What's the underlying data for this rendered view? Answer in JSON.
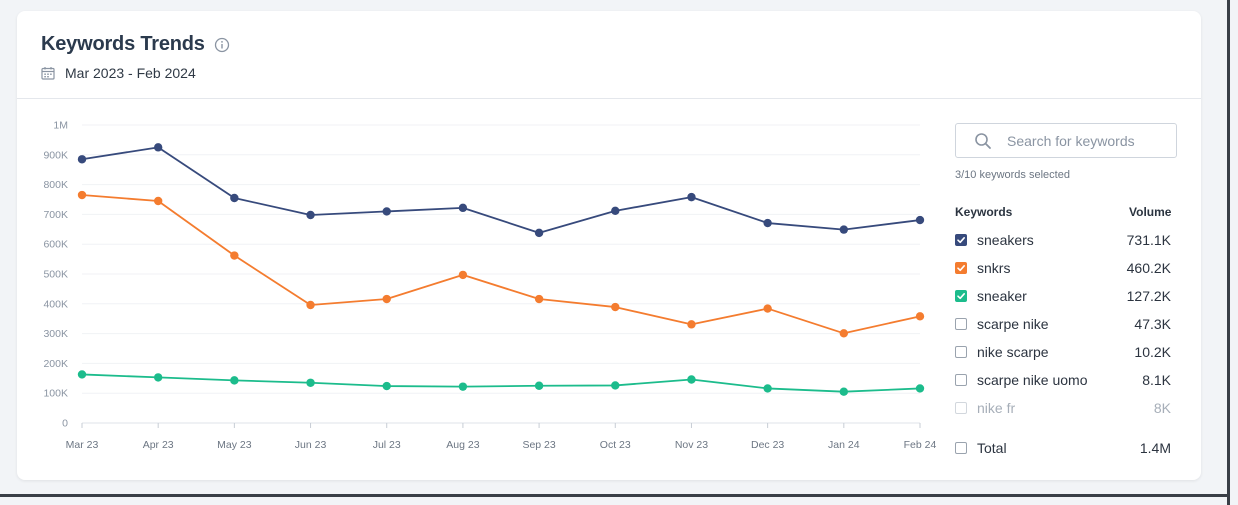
{
  "header": {
    "title": "Keywords Trends",
    "date_range": "Mar 2023 - Feb 2024"
  },
  "search": {
    "placeholder": "Search for keywords",
    "selected_text": "3/10 keywords selected"
  },
  "keyword_table": {
    "col_keywords": "Keywords",
    "col_volume": "Volume",
    "rows": [
      {
        "label": "sneakers",
        "volume": "731.1K",
        "checked": true,
        "color": "#374a7c",
        "faded": false
      },
      {
        "label": "snkrs",
        "volume": "460.2K",
        "checked": true,
        "color": "#f47c2f",
        "faded": false
      },
      {
        "label": "sneaker",
        "volume": "127.2K",
        "checked": true,
        "color": "#1cbc8c",
        "faded": false
      },
      {
        "label": "scarpe nike",
        "volume": "47.3K",
        "checked": false,
        "color": "",
        "faded": false
      },
      {
        "label": "nike scarpe",
        "volume": "10.2K",
        "checked": false,
        "color": "",
        "faded": false
      },
      {
        "label": "scarpe nike uomo",
        "volume": "8.1K",
        "checked": false,
        "color": "",
        "faded": false
      },
      {
        "label": "nike fr",
        "volume": "8K",
        "checked": false,
        "color": "",
        "faded": true
      }
    ],
    "total": {
      "label": "Total",
      "volume": "1.4M",
      "checked": false
    }
  },
  "chart_data": {
    "type": "line",
    "title": "",
    "xlabel": "",
    "ylabel": "",
    "ylim": [
      0,
      1000000
    ],
    "yticks": [
      0,
      100000,
      200000,
      300000,
      400000,
      500000,
      600000,
      700000,
      800000,
      900000,
      1000000
    ],
    "ytick_labels": [
      "0",
      "100K",
      "200K",
      "300K",
      "400K",
      "500K",
      "600K",
      "700K",
      "800K",
      "900K",
      "1M"
    ],
    "categories": [
      "Mar 23",
      "Apr 23",
      "May 23",
      "Jun 23",
      "Jul 23",
      "Aug 23",
      "Sep 23",
      "Oct 23",
      "Nov 23",
      "Dec 23",
      "Jan 24",
      "Feb 24"
    ],
    "grid": true,
    "series": [
      {
        "name": "sneakers",
        "color": "#374a7c",
        "values": [
          885000,
          925000,
          755000,
          698000,
          710000,
          722000,
          638000,
          712000,
          758000,
          671000,
          649000,
          681000
        ]
      },
      {
        "name": "snkrs",
        "color": "#f47c2f",
        "values": [
          765000,
          745000,
          562000,
          396000,
          416000,
          497000,
          416000,
          389000,
          331000,
          384000,
          301000,
          358000
        ]
      },
      {
        "name": "sneaker",
        "color": "#1cbc8c",
        "values": [
          163000,
          153000,
          143000,
          135000,
          124000,
          122000,
          125000,
          126000,
          146000,
          116000,
          105000,
          116000
        ]
      }
    ]
  }
}
